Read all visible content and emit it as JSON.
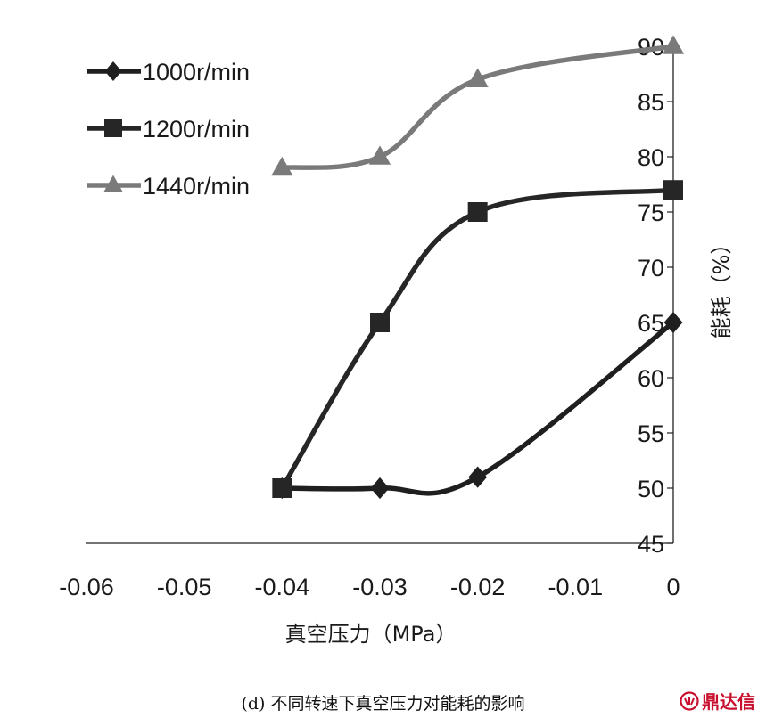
{
  "chart_data": {
    "type": "line",
    "xlabel": "真空压力（MPa）",
    "ylabel": "能耗（%）",
    "x_ticks": [
      "-0.06",
      "-0.05",
      "-0.04",
      "-0.03",
      "-0.02",
      "-0.01",
      "0"
    ],
    "y_ticks": [
      "45",
      "50",
      "55",
      "60",
      "65",
      "70",
      "75",
      "80",
      "85",
      "90"
    ],
    "xlim": [
      -0.06,
      0
    ],
    "ylim": [
      45,
      90
    ],
    "y_axis_position": "right",
    "grid": false,
    "legend_position": "top-left",
    "x": [
      -0.04,
      -0.03,
      -0.02,
      0
    ],
    "series": [
      {
        "name": "1000r/min",
        "marker": "diamond",
        "color": "#1f1f1f",
        "values": [
          50,
          50,
          51,
          65
        ]
      },
      {
        "name": "1200r/min",
        "marker": "square",
        "color": "#262626",
        "values": [
          50,
          65,
          75,
          77
        ]
      },
      {
        "name": "1440r/min",
        "marker": "triangle",
        "color": "#7a7a7a",
        "values": [
          79,
          80,
          87,
          90
        ]
      }
    ]
  },
  "caption": "(d) 不同转速下真空压力对能耗的影响",
  "watermark": {
    "text": "鼎达信",
    "icon": "logo-icon",
    "color": "#c8102e"
  }
}
